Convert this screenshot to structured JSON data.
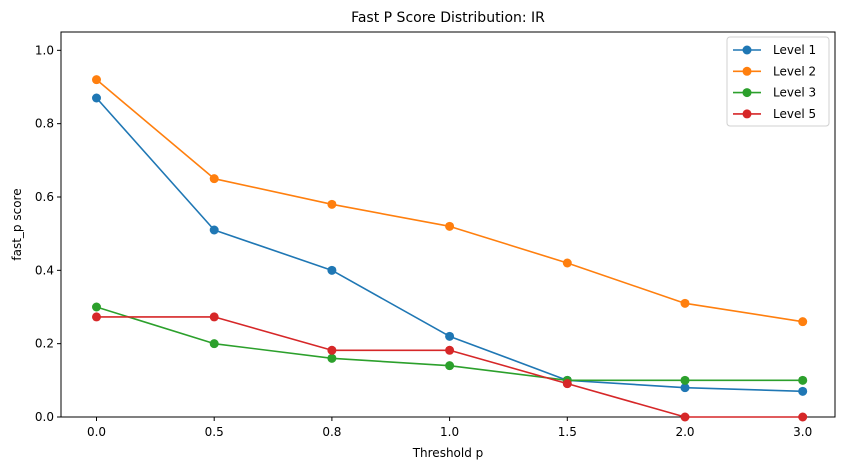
{
  "chart_data": {
    "type": "line",
    "title": "Fast P Score Distribution: IR",
    "xlabel": "Threshold p",
    "ylabel": "fast_p score",
    "categories": [
      "0.0",
      "0.5",
      "0.8",
      "1.0",
      "1.5",
      "2.0",
      "3.0"
    ],
    "ylim": [
      0,
      1.05
    ],
    "yticks": [
      "0.0",
      "0.2",
      "0.4",
      "0.6",
      "0.8",
      "1.0"
    ],
    "grid": false,
    "legend_position": "top-right",
    "series": [
      {
        "name": "Level 1",
        "color": "#1f77b4",
        "values": [
          0.87,
          0.51,
          0.4,
          0.22,
          0.1,
          0.08,
          0.07
        ]
      },
      {
        "name": "Level 2",
        "color": "#ff7f0e",
        "values": [
          0.92,
          0.65,
          0.58,
          0.52,
          0.42,
          0.31,
          0.26
        ]
      },
      {
        "name": "Level 3",
        "color": "#2ca02c",
        "values": [
          0.3,
          0.2,
          0.16,
          0.14,
          0.1,
          0.1,
          0.1
        ]
      },
      {
        "name": "Level 5",
        "color": "#d62728",
        "values": [
          0.273,
          0.273,
          0.182,
          0.182,
          0.091,
          0.0,
          0.0
        ]
      }
    ]
  }
}
